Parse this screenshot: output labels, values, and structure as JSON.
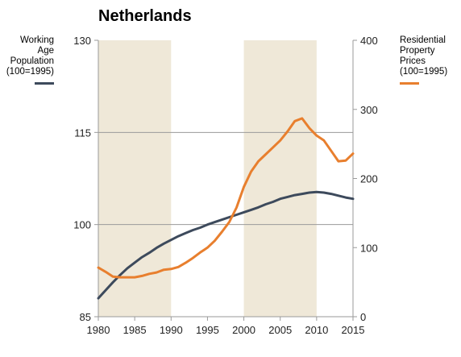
{
  "chart_data": {
    "type": "line",
    "title": "Netherlands",
    "left_axis": {
      "ylim": [
        85,
        130
      ],
      "ticks": [
        85,
        100,
        115,
        130
      ]
    },
    "right_axis": {
      "ylim": [
        0,
        400
      ],
      "ticks": [
        0,
        100,
        200,
        300,
        400
      ]
    },
    "x_axis": {
      "xlim": [
        1980,
        2015
      ],
      "ticks": [
        1980,
        1985,
        1990,
        1995,
        2000,
        2005,
        2010,
        2015
      ]
    },
    "grid": "horizontal at 115 and 100 (left axis)",
    "shaded_periods": [
      [
        1980,
        1990
      ],
      [
        2000,
        2010
      ]
    ],
    "series": [
      {
        "name_lines": [
          "Working",
          "Age",
          "Population",
          "(100=1995)"
        ],
        "axis": "left",
        "color": "#3d4a5c",
        "x": [
          1980,
          1981,
          1982,
          1983,
          1984,
          1985,
          1986,
          1987,
          1988,
          1989,
          1990,
          1991,
          1992,
          1993,
          1994,
          1995,
          1996,
          1997,
          1998,
          1999,
          2000,
          2001,
          2002,
          2003,
          2004,
          2005,
          2006,
          2007,
          2008,
          2009,
          2010,
          2011,
          2012,
          2013,
          2014,
          2015
        ],
        "values": [
          88.0,
          89.3,
          90.6,
          91.8,
          92.9,
          93.8,
          94.7,
          95.4,
          96.2,
          96.9,
          97.5,
          98.1,
          98.6,
          99.1,
          99.5,
          100.0,
          100.4,
          100.8,
          101.2,
          101.6,
          102.0,
          102.4,
          102.8,
          103.3,
          103.7,
          104.2,
          104.5,
          104.8,
          105.0,
          105.2,
          105.3,
          105.2,
          105.0,
          104.7,
          104.4,
          104.2
        ]
      },
      {
        "name_lines": [
          "Residential",
          "Property",
          "Prices",
          "(100=1995)"
        ],
        "axis": "right",
        "color": "#e87f2e",
        "x": [
          1980,
          1981,
          1982,
          1983,
          1984,
          1985,
          1986,
          1987,
          1988,
          1989,
          1990,
          1991,
          1992,
          1993,
          1994,
          1995,
          1996,
          1997,
          1998,
          1999,
          2000,
          2001,
          2002,
          2003,
          2004,
          2005,
          2006,
          2007,
          2008,
          2009,
          2010,
          2011,
          2012,
          2013,
          2014,
          2015
        ],
        "values": [
          71,
          65,
          58,
          57,
          57,
          57,
          59,
          62,
          64,
          68,
          69,
          72,
          78,
          85,
          93,
          100,
          110,
          123,
          137,
          158,
          188,
          210,
          225,
          235,
          245,
          255,
          268,
          283,
          287,
          273,
          262,
          255,
          240,
          225,
          226,
          236
        ]
      }
    ]
  }
}
